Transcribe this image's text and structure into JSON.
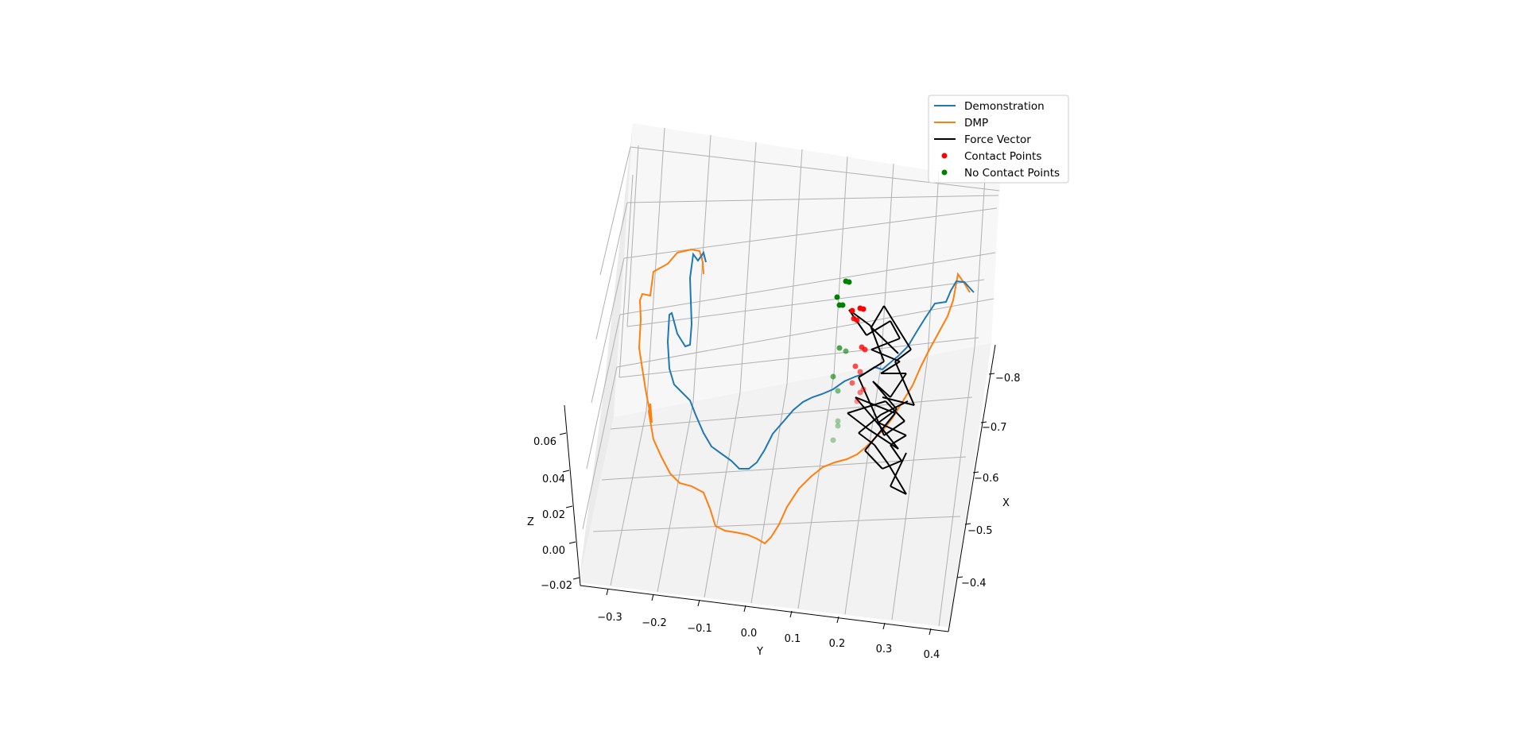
{
  "chart_data": {
    "type": "line3d",
    "title": "",
    "axes": {
      "x": {
        "label": "X",
        "ticks": [
          "−0.8",
          "−0.7",
          "−0.6",
          "−0.5",
          "−0.4"
        ]
      },
      "y": {
        "label": "Y",
        "ticks": [
          "−0.3",
          "−0.2",
          "−0.1",
          "0.0",
          "0.1",
          "0.2",
          "0.3",
          "0.4"
        ]
      },
      "z": {
        "label": "Z",
        "ticks": [
          "−0.02",
          "0.00",
          "0.02",
          "0.04",
          "0.06"
        ]
      }
    },
    "grid": true,
    "legend_position": "top-right",
    "legend": [
      {
        "label": "Demonstration",
        "marker": "line",
        "color": "#1f77b4"
      },
      {
        "label": "DMP",
        "marker": "line",
        "color": "#ff7f0e"
      },
      {
        "label": "Force Vector",
        "marker": "line",
        "color": "#000000"
      },
      {
        "label": "Contact Points",
        "marker": "dot",
        "color": "#ff0000"
      },
      {
        "label": "No Contact Points",
        "marker": "dot",
        "color": "#008000"
      }
    ],
    "series": [
      {
        "name": "Demonstration",
        "color": "#1f77b4"
      },
      {
        "name": "DMP",
        "color": "#ff7f0e"
      },
      {
        "name": "Force Vector",
        "color": "#000000"
      },
      {
        "name": "Contact Points",
        "color": "#ff0000"
      },
      {
        "name": "No Contact Points",
        "color": "#008000"
      }
    ]
  }
}
